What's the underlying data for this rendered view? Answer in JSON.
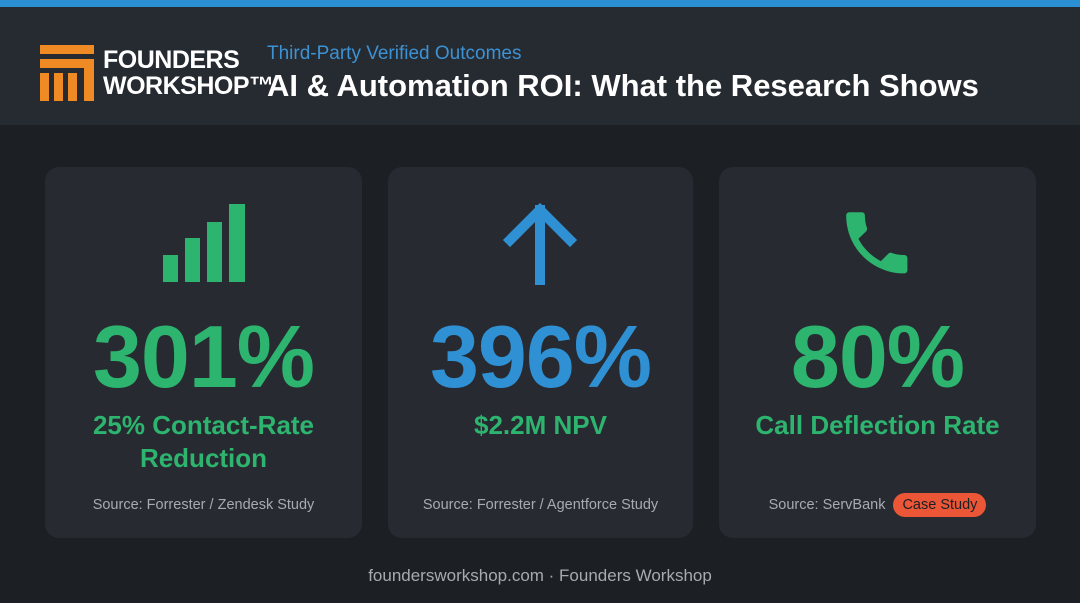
{
  "header": {
    "logo_line1": "FOUNDERS",
    "logo_line2": "WORKSHOP™",
    "subtitle": "Third-Party Verified Outcomes",
    "title": "AI & Automation ROI: What the Research Shows"
  },
  "cards": [
    {
      "value": "301%",
      "label": "25% Contact-Rate Reduction",
      "source": "Source: Forrester / Zendesk Study"
    },
    {
      "value": "396%",
      "label": "$2.2M NPV",
      "source": "Source: Forrester / Agentforce Study"
    },
    {
      "value": "80%",
      "label": "Call Deflection Rate",
      "source": "Source: ServBank",
      "badge": "Case Study"
    }
  ],
  "footer": "foundersworkshop.com · Founders Workshop"
}
